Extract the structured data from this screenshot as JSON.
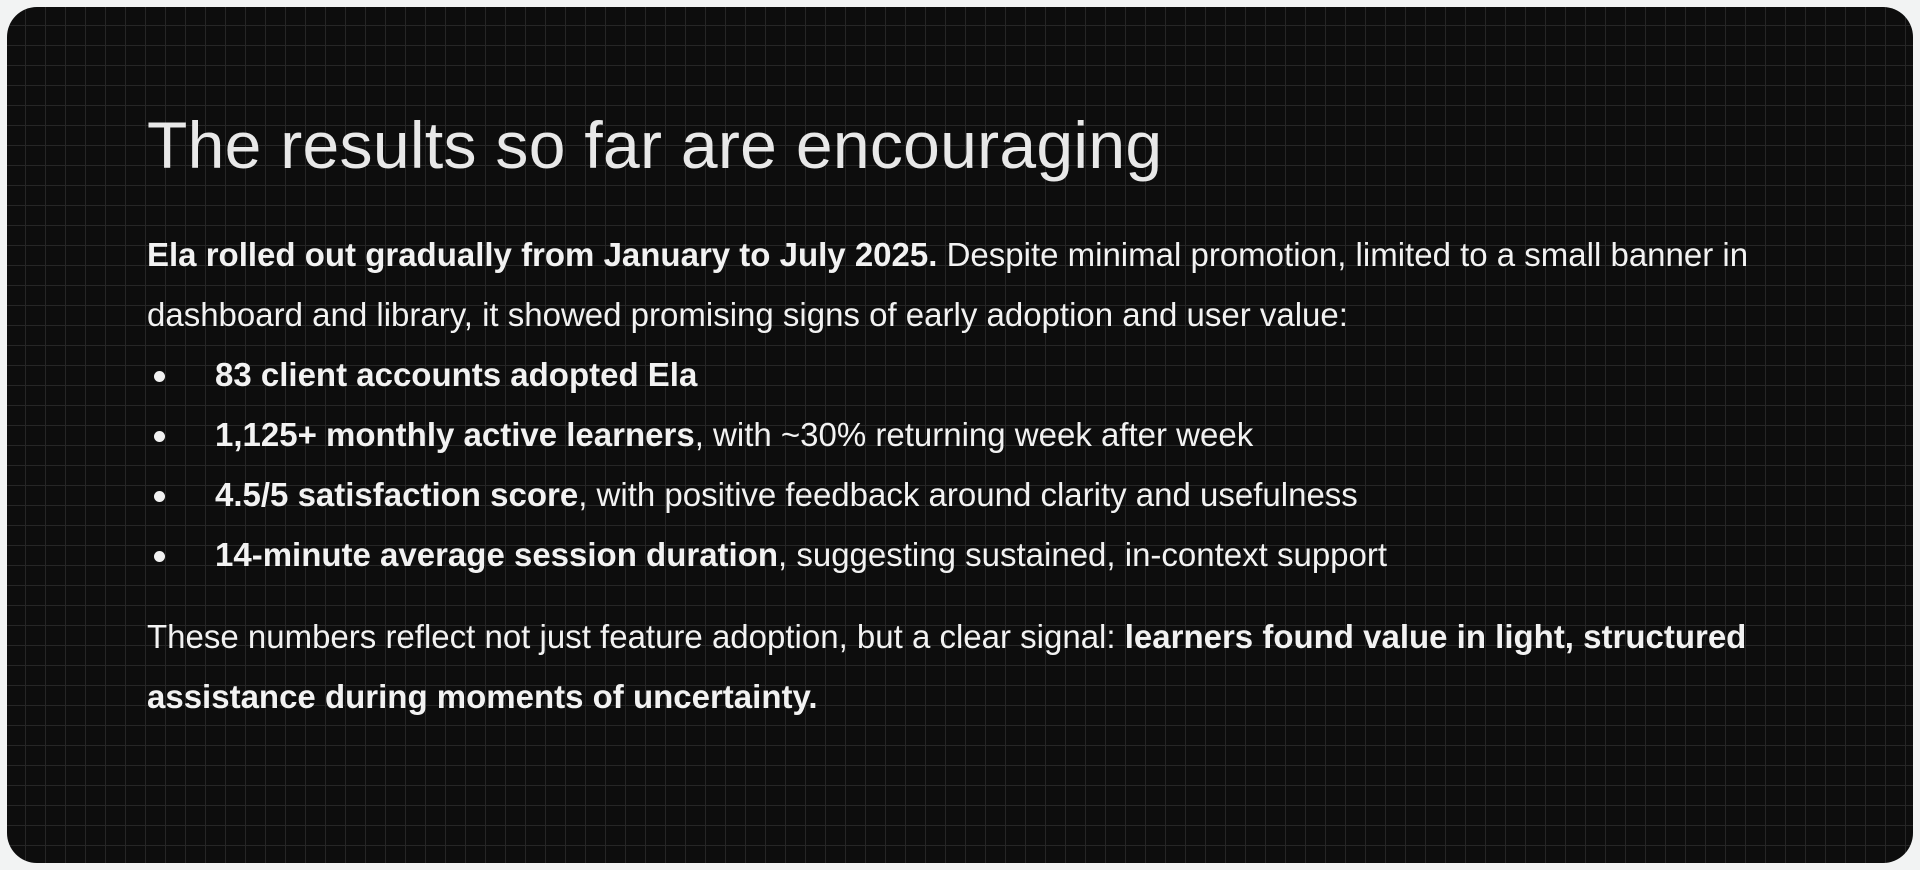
{
  "title": "The results so far are encouraging",
  "intro": {
    "bold": "Ela rolled out gradually from January to July 2025.",
    "text": " Despite minimal promotion, limited to a small banner in dashboard and library, it showed promising signs of early adoption and user value:"
  },
  "bullets": [
    {
      "bold": "83 client accounts adopted Ela",
      "text": ""
    },
    {
      "bold": "1,125+ monthly active learners",
      "text": ", with ~30% returning week after week"
    },
    {
      "bold": "4.5/5 satisfaction score",
      "text": ", with positive feedback around clarity and usefulness"
    },
    {
      "bold": "14-minute average session duration",
      "text": ", suggesting sustained, in-context support"
    }
  ],
  "outro": {
    "text": "These numbers reflect not just feature adoption, but a clear signal: ",
    "bold": "learners found value in light, structured assistance during moments of uncertainty."
  },
  "colors": {
    "background": "#0d0d0d",
    "grid": "#262626",
    "text": "#f2f2f2",
    "frame": "#f2f3f3"
  }
}
